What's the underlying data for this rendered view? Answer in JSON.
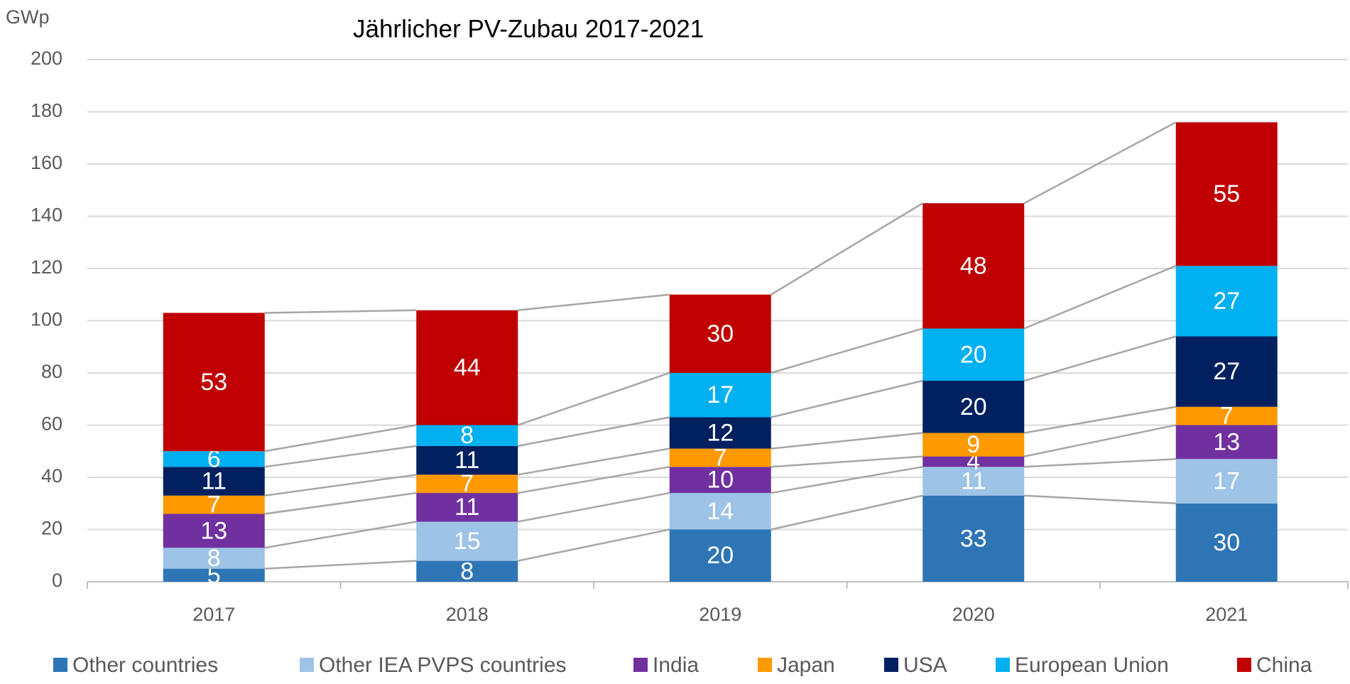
{
  "chart_data": {
    "type": "stacked_bar",
    "title": "Jährlicher PV-Zubau 2017-2021",
    "y_label": "GWp",
    "categories": [
      "2017",
      "2018",
      "2019",
      "2020",
      "2021"
    ],
    "series": [
      {
        "name": "Other countries",
        "color": "#2e75b6",
        "values": [
          5,
          8,
          20,
          33,
          30
        ]
      },
      {
        "name": "Other IEA PVPS countries",
        "color": "#9dc3e6",
        "values": [
          8,
          15,
          14,
          11,
          17
        ]
      },
      {
        "name": "India",
        "color": "#7030a0",
        "values": [
          13,
          11,
          10,
          4,
          13
        ]
      },
      {
        "name": "Japan",
        "color": "#ff9900",
        "values": [
          7,
          7,
          7,
          9,
          7
        ]
      },
      {
        "name": "USA",
        "color": "#002060",
        "values": [
          11,
          11,
          12,
          20,
          27
        ]
      },
      {
        "name": "European Union",
        "color": "#00b0f0",
        "values": [
          6,
          8,
          17,
          20,
          27
        ]
      },
      {
        "name": "China",
        "color": "#c00000",
        "values": [
          53,
          44,
          30,
          48,
          55
        ]
      }
    ],
    "ylim": [
      0,
      200
    ],
    "yticks": [
      0,
      20,
      40,
      60,
      80,
      100,
      120,
      140,
      160,
      180,
      200
    ],
    "grid": true,
    "legend": "bottom"
  }
}
